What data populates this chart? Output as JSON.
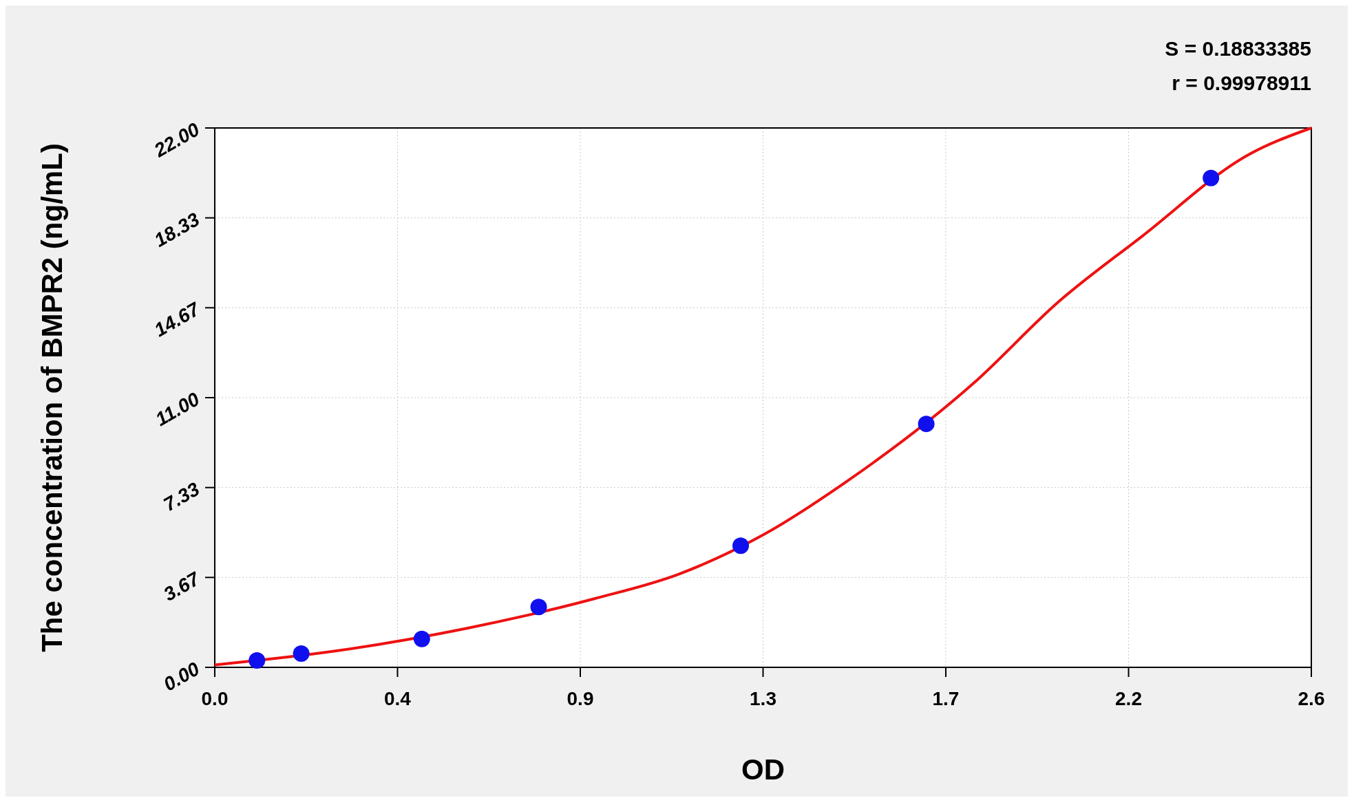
{
  "chart_data": {
    "type": "scatter",
    "xlabel": "OD",
    "ylabel": "The concentration of BMPR2 (ng/mL)",
    "annotations": [
      "S = 0.18833385",
      "r = 0.99978911"
    ],
    "xlim": [
      0,
      2.6
    ],
    "ylim": [
      0,
      22
    ],
    "xticks": [
      {
        "value": 0,
        "label": "0.0"
      },
      {
        "value": 0.4333,
        "label": "0.4"
      },
      {
        "value": 0.8667,
        "label": "0.9"
      },
      {
        "value": 1.3,
        "label": "1.3"
      },
      {
        "value": 1.7333,
        "label": "1.7"
      },
      {
        "value": 2.1667,
        "label": "2.2"
      },
      {
        "value": 2.6,
        "label": "2.6"
      }
    ],
    "yticks": [
      {
        "value": 0,
        "label": "0.00"
      },
      {
        "value": 3.6667,
        "label": "3.67"
      },
      {
        "value": 7.3333,
        "label": "7.33"
      },
      {
        "value": 11,
        "label": "11.00"
      },
      {
        "value": 14.6667,
        "label": "14.67"
      },
      {
        "value": 18.3333,
        "label": "18.33"
      },
      {
        "value": 22,
        "label": "22.00"
      }
    ],
    "grid": true,
    "series": [
      {
        "type": "line",
        "color": "#ee1111",
        "marker": "none",
        "line_style": "solid",
        "x": [
          0,
          0.3,
          0.6,
          0.9,
          1.1,
          1.3,
          1.5,
          1.8,
          2.0,
          2.2,
          2.45,
          2.6
        ],
        "values": [
          0.1,
          0.7,
          1.6,
          2.8,
          3.8,
          5.4,
          7.6,
          11.6,
          14.9,
          17.6,
          20.9,
          22.0
        ]
      },
      {
        "color": "#1010ee",
        "marker": "circle",
        "x": [
          0.1,
          0.205,
          0.491,
          0.768,
          1.247,
          1.687,
          2.362
        ],
        "values": [
          0.28,
          0.56,
          1.16,
          2.46,
          4.96,
          9.93,
          19.96
        ]
      }
    ]
  }
}
